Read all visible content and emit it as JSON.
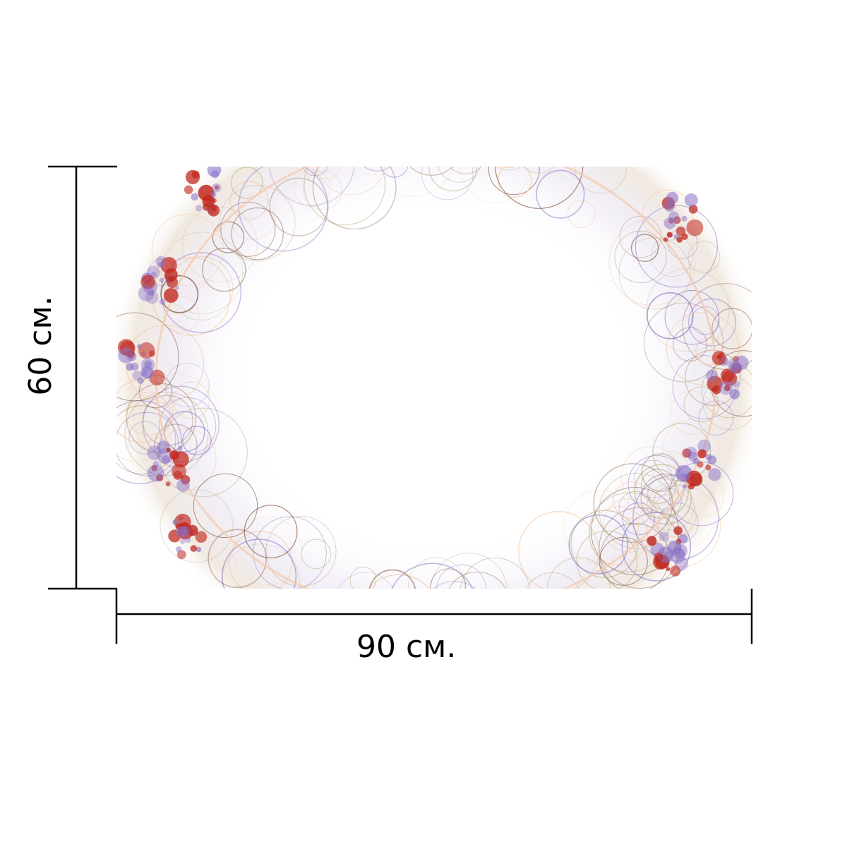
{
  "product": {
    "artwork": "fractal-lace-wreath",
    "palette": {
      "background": "#ffffff",
      "line": "#000000",
      "red": "#c0281e",
      "purple": "#8a72c8",
      "brown": "#7a4a2e",
      "olive": "#b8b48a",
      "peach": "#f4c9a8"
    }
  },
  "dimensions": {
    "width_label": "90 см.",
    "height_label": "60 см."
  }
}
